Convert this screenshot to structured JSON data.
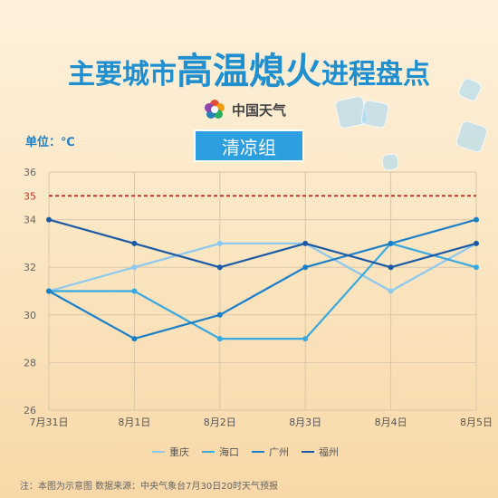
{
  "header": {
    "title_small_1": "主要城市",
    "title_big": "高温熄火",
    "title_small_2": "进程盘点",
    "brand": "中国天气",
    "unit": "单位：℃",
    "group": "清凉组"
  },
  "icons": {
    "logo": "china-weather-logo-icon",
    "ice": "ice-cube-icon"
  },
  "colors": {
    "title": "#1f8fd0",
    "threshold": "#c0392b",
    "重庆": "#8cc8ef",
    "海口": "#3aa9e0",
    "广州": "#1c7fc9",
    "福州": "#1d5aa6"
  },
  "chart_data": {
    "type": "line",
    "categories": [
      "7月31日",
      "8月1日",
      "8月2日",
      "8月3日",
      "8月4日",
      "8月5日"
    ],
    "series": [
      {
        "name": "重庆",
        "values": [
          31,
          32,
          33,
          33,
          31,
          33
        ]
      },
      {
        "name": "海口",
        "values": [
          31,
          31,
          29,
          29,
          33,
          32
        ]
      },
      {
        "name": "广州",
        "values": [
          31,
          29,
          30,
          32,
          33,
          34
        ]
      },
      {
        "name": "福州",
        "values": [
          34,
          33,
          32,
          33,
          32,
          33
        ]
      }
    ],
    "threshold": {
      "value": 35,
      "label": "35"
    },
    "yticks": [
      26,
      28,
      30,
      32,
      34,
      36
    ],
    "ylim": [
      26,
      36
    ],
    "grid": true,
    "legend_position": "bottom"
  },
  "footnote": "注：本图为示意图  数据来源：中央气象台7月30日20时天气预报"
}
